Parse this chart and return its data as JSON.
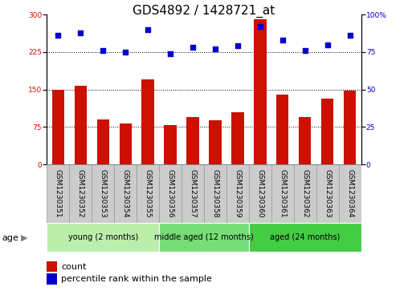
{
  "title": "GDS4892 / 1428721_at",
  "samples": [
    "GSM1230351",
    "GSM1230352",
    "GSM1230353",
    "GSM1230354",
    "GSM1230355",
    "GSM1230356",
    "GSM1230357",
    "GSM1230358",
    "GSM1230359",
    "GSM1230360",
    "GSM1230361",
    "GSM1230362",
    "GSM1230363",
    "GSM1230364"
  ],
  "counts": [
    150,
    158,
    90,
    82,
    170,
    78,
    95,
    88,
    105,
    290,
    140,
    95,
    132,
    148
  ],
  "percentile_ranks": [
    86,
    88,
    76,
    75,
    90,
    74,
    78,
    77,
    79,
    92,
    83,
    76,
    80,
    86
  ],
  "ylim_left": [
    0,
    300
  ],
  "ylim_right": [
    0,
    100
  ],
  "yticks_left": [
    0,
    75,
    150,
    225,
    300
  ],
  "yticks_right": [
    0,
    25,
    50,
    75,
    100
  ],
  "bar_color": "#cc1100",
  "dot_color": "#0000cc",
  "grid_color": "#000000",
  "groups": [
    {
      "label": "young (2 months)",
      "start": 0,
      "end": 5
    },
    {
      "label": "middle aged (12 months)",
      "start": 5,
      "end": 9
    },
    {
      "label": "aged (24 months)",
      "start": 9,
      "end": 14
    }
  ],
  "group_colors": [
    "#bbeeaa",
    "#77dd77",
    "#44cc44"
  ],
  "sample_box_color": "#cccccc",
  "sample_box_edge": "#999999",
  "xlabel_group": "age",
  "legend_count_label": "count",
  "legend_pct_label": "percentile rank within the sample",
  "title_fontsize": 11,
  "tick_fontsize": 6.5,
  "group_fontsize": 8,
  "legend_fontsize": 8,
  "bar_width": 0.55
}
